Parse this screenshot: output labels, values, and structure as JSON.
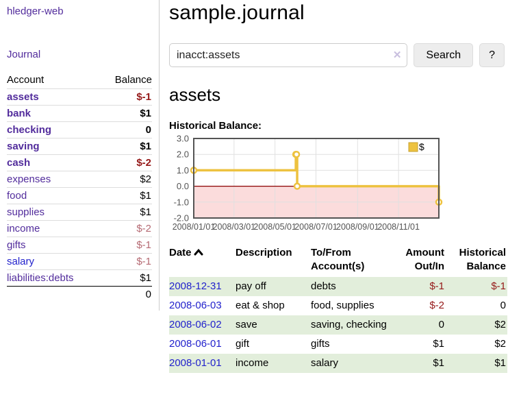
{
  "app": {
    "brand": "hledger-web"
  },
  "sidebar": {
    "journal_label": "Journal",
    "accounts": {
      "headers": [
        "Account",
        "Balance"
      ],
      "rows": [
        {
          "account": "assets",
          "balance": "$-1",
          "level": 1,
          "bold": true,
          "balance_style": "negative"
        },
        {
          "account": "bank",
          "balance": "$1",
          "level": 2,
          "bold": true,
          "balance_style": "normal"
        },
        {
          "account": "checking",
          "balance": "0",
          "level": 3,
          "bold": true,
          "balance_style": "normal"
        },
        {
          "account": "saving",
          "balance": "$1",
          "level": 3,
          "bold": true,
          "balance_style": "normal"
        },
        {
          "account": "cash",
          "balance": "$-2",
          "level": 2,
          "bold": true,
          "balance_style": "negative"
        },
        {
          "account": "expenses",
          "balance": "$2",
          "level": 1,
          "bold": false,
          "balance_style": "normal"
        },
        {
          "account": "food",
          "balance": "$1",
          "level": 2,
          "bold": false,
          "balance_style": "normal"
        },
        {
          "account": "supplies",
          "balance": "$1",
          "level": 2,
          "bold": false,
          "balance_style": "normal"
        },
        {
          "account": "income",
          "balance": "$-2",
          "level": 1,
          "bold": false,
          "balance_style": "washed"
        },
        {
          "account": "gifts",
          "balance": "$-1",
          "level": 2,
          "bold": false,
          "balance_style": "washed"
        },
        {
          "account": "salary",
          "balance": "$-1",
          "level": 2,
          "bold": false,
          "balance_style": "washed",
          "link_style": "unvisited"
        },
        {
          "account": "liabilities:debts",
          "balance": "$1",
          "level": 1,
          "bold": false,
          "balance_style": "normal",
          "total_divider": true
        }
      ],
      "total": "0"
    }
  },
  "header": {
    "title": "sample.journal"
  },
  "search": {
    "value": "inacct:assets",
    "clear_icon": "✕",
    "button_label": "Search",
    "help_label": "?"
  },
  "main": {
    "account_heading": "assets",
    "chart_label": "Historical Balance:"
  },
  "chart_data": {
    "type": "line",
    "title": "Historical Balance:",
    "legend_label": "$",
    "legend_position": "top-right",
    "grid": true,
    "ylim": [
      -2,
      3
    ],
    "x_range": [
      "2008-01-01",
      "2008-12-31"
    ],
    "y_ticks": [
      3,
      2,
      1,
      0,
      -1,
      -2
    ],
    "x_ticks": [
      "2008/01/01",
      "2008/03/01",
      "2008/05/01",
      "2008/07/01",
      "2008/09/01",
      "2008/11/01"
    ],
    "series": [
      {
        "name": "$",
        "color": "#edc240",
        "step": true,
        "points": [
          {
            "date": "2008-01-01",
            "value": 1
          },
          {
            "date": "2008-06-01",
            "value": 2
          },
          {
            "date": "2008-06-02",
            "value": 2
          },
          {
            "date": "2008-06-03",
            "value": 0
          },
          {
            "date": "2008-12-31",
            "value": -1
          }
        ]
      }
    ],
    "colors": {
      "negative_fill": "#fbdcdc",
      "zero_line": "#8b0000",
      "gridline": "#e0e0e0",
      "plot_border": "#545454",
      "tick_label": "#545454",
      "legend_box_border": "#c7a12f"
    }
  },
  "register": {
    "headers": [
      "Date",
      "Description",
      "To/From Account(s)",
      "Amount Out/In",
      "Historical Balance"
    ],
    "sort": {
      "column": "Date",
      "direction": "ascending"
    },
    "rows": [
      {
        "date": "2008-12-31",
        "description": "pay off",
        "accounts": "debts",
        "amount": "$-1",
        "amount_style": "negative",
        "balance": "$-1",
        "balance_style": "negative"
      },
      {
        "date": "2008-06-03",
        "description": "eat & shop",
        "accounts": "food, supplies",
        "amount": "$-2",
        "amount_style": "negative",
        "balance": "0",
        "balance_style": "normal"
      },
      {
        "date": "2008-06-02",
        "description": "save",
        "accounts": "saving, checking",
        "amount": "0",
        "amount_style": "normal",
        "balance": "$2",
        "balance_style": "normal"
      },
      {
        "date": "2008-06-01",
        "description": "gift",
        "accounts": "gifts",
        "amount": "$1",
        "amount_style": "normal",
        "balance": "$2",
        "balance_style": "normal"
      },
      {
        "date": "2008-01-01",
        "description": "income",
        "accounts": "salary",
        "amount": "$1",
        "amount_style": "normal",
        "balance": "$1",
        "balance_style": "normal"
      }
    ]
  }
}
